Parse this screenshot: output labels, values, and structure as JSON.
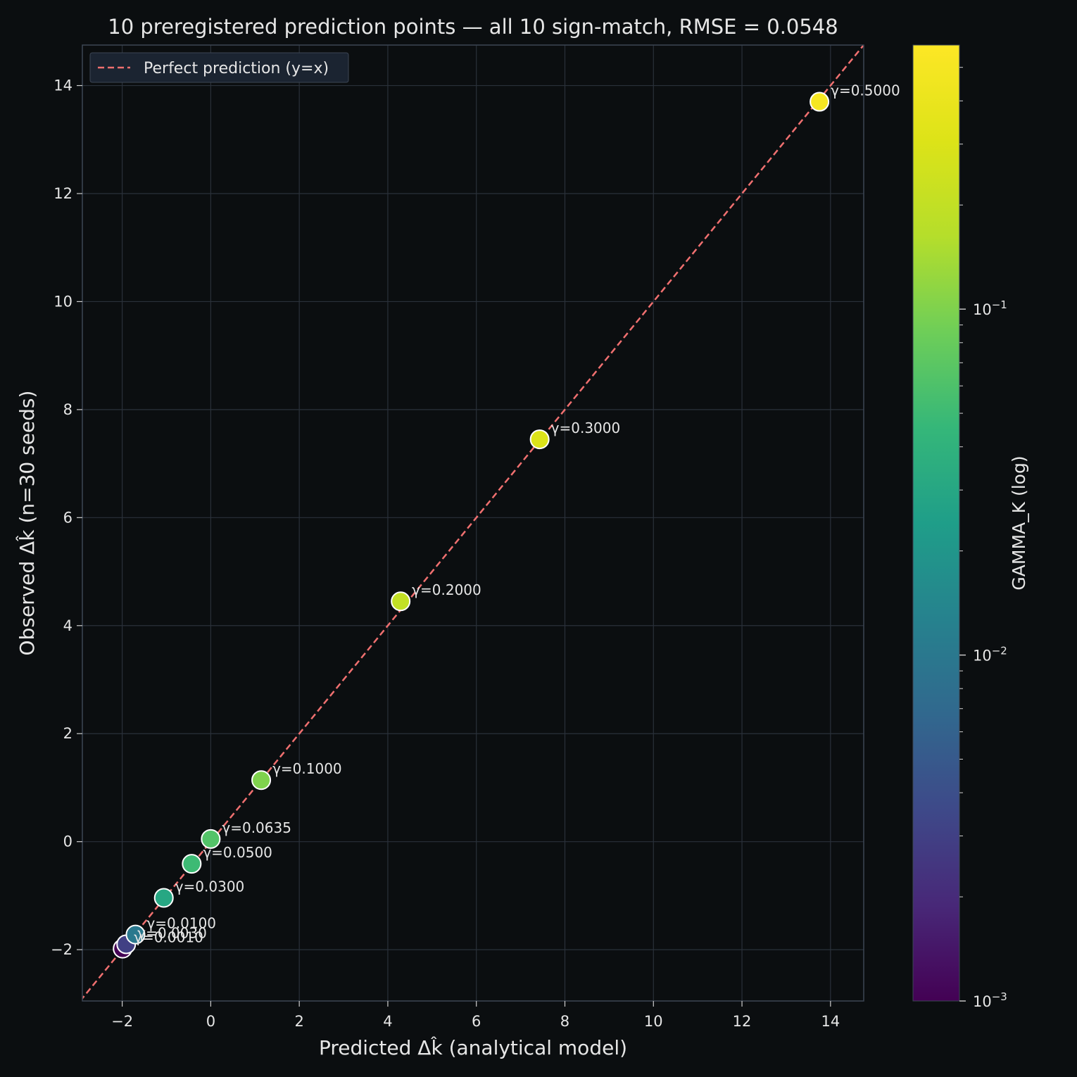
{
  "chart_data": {
    "type": "scatter",
    "title": "10 preregistered prediction points — all 10 sign-match, RMSE = 0.0548",
    "xlabel": "Predicted Δk̂ (analytical model)",
    "ylabel": "Observed Δk̂ (n=30 seeds)",
    "xlim": [
      -2.9,
      14.75
    ],
    "ylim": [
      -2.95,
      14.75
    ],
    "xticks": [
      -2,
      0,
      2,
      4,
      6,
      8,
      10,
      12,
      14
    ],
    "yticks": [
      -2,
      0,
      2,
      4,
      6,
      8,
      10,
      12,
      14
    ],
    "grid": true,
    "legend": {
      "placement": "top-left",
      "entries": [
        {
          "label": "Perfect prediction (y=x)",
          "style": "dashed",
          "color": "#f07070"
        }
      ]
    },
    "reference_line": {
      "type": "y=x",
      "color": "#f07070"
    },
    "colorbar": {
      "label": "GAMMA_K (log)",
      "scale": "log",
      "colormap": "viridis",
      "range": [
        0.001,
        0.58
      ],
      "ticks": [
        {
          "value": 0.001,
          "base": "10",
          "exp": "−3"
        },
        {
          "value": 0.01,
          "base": "10",
          "exp": "−2"
        },
        {
          "value": 0.1,
          "base": "10",
          "exp": "−1"
        }
      ]
    },
    "points": [
      {
        "gamma": 0.001,
        "label": "γ=0.0010",
        "x": -1.99,
        "y": -1.98
      },
      {
        "gamma": 0.003,
        "label": "γ=0.0030",
        "x": -1.91,
        "y": -1.9
      },
      {
        "gamma": 0.01,
        "label": "γ=0.0100",
        "x": -1.7,
        "y": -1.72
      },
      {
        "gamma": 0.03,
        "label": "γ=0.0300",
        "x": -1.06,
        "y": -1.04
      },
      {
        "gamma": 0.05,
        "label": "γ=0.0500",
        "x": -0.43,
        "y": -0.41
      },
      {
        "gamma": 0.0635,
        "label": "γ=0.0635",
        "x": 0.0,
        "y": 0.05
      },
      {
        "gamma": 0.1,
        "label": "γ=0.1000",
        "x": 1.14,
        "y": 1.14
      },
      {
        "gamma": 0.2,
        "label": "γ=0.2000",
        "x": 4.29,
        "y": 4.45
      },
      {
        "gamma": 0.3,
        "label": "γ=0.3000",
        "x": 7.43,
        "y": 7.45
      },
      {
        "gamma": 0.5,
        "label": "γ=0.5000",
        "x": 13.75,
        "y": 13.7
      }
    ]
  }
}
